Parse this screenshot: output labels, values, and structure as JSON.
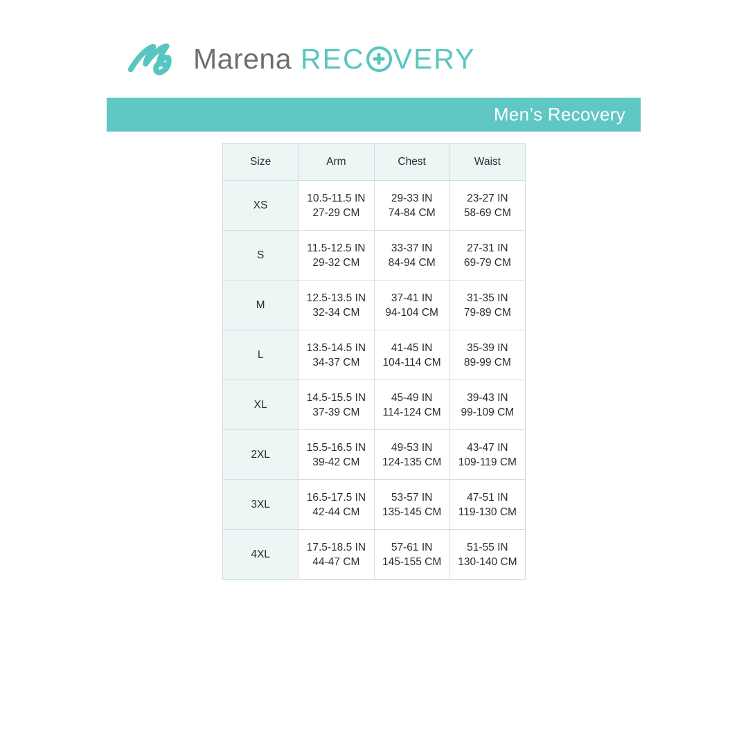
{
  "logo": {
    "brand": "Marena",
    "product_prefix": "REC",
    "product_suffix": "VERY",
    "mark_icon": "marena-m-swoosh-icon",
    "o_icon": "circle-plus-icon",
    "teal": "#57c6c1",
    "gray": "#6d6e71"
  },
  "banner": {
    "label": "Men’s Recovery",
    "background": "#5fc7c4",
    "text_color": "#ffffff"
  },
  "table": {
    "columns": [
      "Size",
      "Arm",
      "Chest",
      "Waist"
    ],
    "header_background": "#ecf6f5",
    "border_color": "#d5dbde",
    "rows": [
      {
        "size": "XS",
        "arm": [
          "10.5-11.5 IN",
          "27-29 CM"
        ],
        "chest": [
          "29-33 IN",
          "74-84 CM"
        ],
        "waist": [
          "23-27 IN",
          "58-69 CM"
        ]
      },
      {
        "size": "S",
        "arm": [
          "11.5-12.5 IN",
          "29-32 CM"
        ],
        "chest": [
          "33-37 IN",
          "84-94 CM"
        ],
        "waist": [
          "27-31 IN",
          "69-79 CM"
        ]
      },
      {
        "size": "M",
        "arm": [
          "12.5-13.5 IN",
          "32-34 CM"
        ],
        "chest": [
          "37-41 IN",
          "94-104 CM"
        ],
        "waist": [
          "31-35 IN",
          "79-89 CM"
        ]
      },
      {
        "size": "L",
        "arm": [
          "13.5-14.5 IN",
          "34-37 CM"
        ],
        "chest": [
          "41-45 IN",
          "104-114 CM"
        ],
        "waist": [
          "35-39 IN",
          "89-99 CM"
        ]
      },
      {
        "size": "XL",
        "arm": [
          "14.5-15.5 IN",
          "37-39 CM"
        ],
        "chest": [
          "45-49 IN",
          "114-124 CM"
        ],
        "waist": [
          "39-43 IN",
          "99-109 CM"
        ]
      },
      {
        "size": "2XL",
        "arm": [
          "15.5-16.5 IN",
          "39-42 CM"
        ],
        "chest": [
          "49-53 IN",
          "124-135 CM"
        ],
        "waist": [
          "43-47 IN",
          "109-119 CM"
        ]
      },
      {
        "size": "3XL",
        "arm": [
          "16.5-17.5 IN",
          "42-44 CM"
        ],
        "chest": [
          "53-57 IN",
          "135-145 CM"
        ],
        "waist": [
          "47-51 IN",
          "119-130 CM"
        ]
      },
      {
        "size": "4XL",
        "arm": [
          "17.5-18.5 IN",
          "44-47 CM"
        ],
        "chest": [
          "57-61 IN",
          "145-155 CM"
        ],
        "waist": [
          "51-55 IN",
          "130-140 CM"
        ]
      }
    ]
  }
}
